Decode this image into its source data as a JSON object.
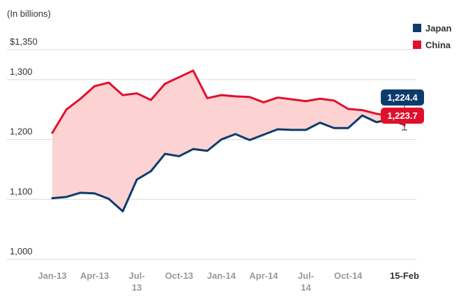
{
  "chart_data": {
    "type": "line",
    "unit_note": "(In billions)",
    "y_ticks": [
      {
        "value": 1350,
        "label": "$1,350"
      },
      {
        "value": 1300,
        "label": "1,300"
      },
      {
        "value": 1200,
        "label": "1,200"
      },
      {
        "value": 1100,
        "label": "1,100"
      },
      {
        "value": 1000,
        "label": "1,000"
      }
    ],
    "x_ticks": [
      {
        "x": 0,
        "lines": [
          "Jan-13"
        ]
      },
      {
        "x": 3,
        "lines": [
          "Apr-13"
        ]
      },
      {
        "x": 6,
        "lines": [
          "Jul-",
          "13"
        ]
      },
      {
        "x": 9,
        "lines": [
          "Oct-13"
        ]
      },
      {
        "x": 12,
        "lines": [
          "Jan-14"
        ]
      },
      {
        "x": 15,
        "lines": [
          "Apr-14"
        ]
      },
      {
        "x": 18,
        "lines": [
          "Jul-",
          "14"
        ]
      },
      {
        "x": 21,
        "lines": [
          "Oct-14"
        ]
      },
      {
        "x": 25,
        "lines": [
          "15-Feb"
        ],
        "highlight": true
      }
    ],
    "ylim": [
      985,
      1365
    ],
    "xlim": [
      -1,
      26
    ],
    "series": [
      {
        "name": "China",
        "color": "#e0102c",
        "values": [
          1211,
          1250,
          1268,
          1289,
          1295,
          1274,
          1277,
          1266,
          1293,
          1304,
          1315,
          1269,
          1274,
          1272,
          1271,
          1262,
          1270,
          1267,
          1264,
          1268,
          1265,
          1251,
          1249,
          1243,
          1239,
          1223.7
        ]
      },
      {
        "name": "Japan",
        "color": "#0c3c6c",
        "values": [
          1102,
          1104,
          1111,
          1110,
          1101,
          1080,
          1133,
          1147,
          1176,
          1172,
          1184,
          1181,
          1200,
          1209,
          1199,
          1208,
          1217,
          1216,
          1216,
          1228,
          1219,
          1219,
          1240,
          1229,
          1233,
          1224.4
        ]
      }
    ],
    "fill_between_color": "#fcd2d3",
    "callouts": [
      {
        "series": "Japan",
        "label": "1,224.4",
        "color": "#0c3c6c"
      },
      {
        "series": "China",
        "label": "1,223.7",
        "color": "#e0102c"
      }
    ]
  }
}
